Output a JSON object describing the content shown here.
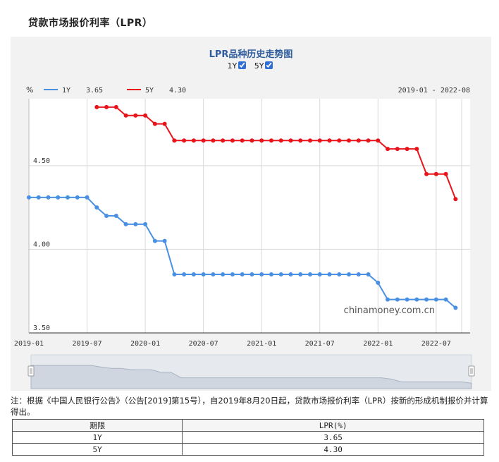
{
  "page_title": "贷款市场报价利率（LPR）",
  "toggles": [
    {
      "label": "1Y",
      "checked": true
    },
    {
      "label": "5Y",
      "checked": true
    }
  ],
  "legend": [
    {
      "name": "1Y",
      "value": "3.65",
      "color": "#4a90e2"
    },
    {
      "name": "5Y",
      "value": "4.30",
      "color": "#e8141b"
    }
  ],
  "unit": "%",
  "date_range": "2019-01 - 2022-08",
  "watermark": "chinamoney.com.cn",
  "chart_data": {
    "type": "line",
    "title": "LPR品种历史走势图",
    "ylim": [
      3.5,
      4.9
    ],
    "yticks": [
      "3.50",
      "4.00",
      "4.50"
    ],
    "xtick_labels": [
      "2019-01",
      "2019-07",
      "2020-01",
      "2020-07",
      "2021-01",
      "2021-07",
      "2022-01",
      "2022-07"
    ],
    "x_start": "2019-01",
    "series": [
      {
        "name": "1Y",
        "color": "#4a90e2",
        "values": [
          4.31,
          4.31,
          4.31,
          4.31,
          4.31,
          4.31,
          4.31,
          4.25,
          4.2,
          4.2,
          4.15,
          4.15,
          4.15,
          4.05,
          4.05,
          3.85,
          3.85,
          3.85,
          3.85,
          3.85,
          3.85,
          3.85,
          3.85,
          3.85,
          3.85,
          3.85,
          3.85,
          3.85,
          3.85,
          3.85,
          3.85,
          3.85,
          3.85,
          3.85,
          3.85,
          3.85,
          3.8,
          3.7,
          3.7,
          3.7,
          3.7,
          3.7,
          3.7,
          3.7,
          3.65
        ]
      },
      {
        "name": "5Y",
        "color": "#e8141b",
        "values": [
          null,
          null,
          null,
          null,
          null,
          null,
          null,
          4.85,
          4.85,
          4.85,
          4.8,
          4.8,
          4.8,
          4.75,
          4.75,
          4.65,
          4.65,
          4.65,
          4.65,
          4.65,
          4.65,
          4.65,
          4.65,
          4.65,
          4.65,
          4.65,
          4.65,
          4.65,
          4.65,
          4.65,
          4.65,
          4.65,
          4.65,
          4.65,
          4.65,
          4.65,
          4.65,
          4.6,
          4.6,
          4.6,
          4.6,
          4.45,
          4.45,
          4.45,
          4.3
        ]
      }
    ]
  },
  "footnote": "注：根据《中国人民银行公告》（公告[2019]第15号），自2019年8月20日起，贷款市场报价利率（LPR）按新的形成机制报价并计算得出。",
  "table": {
    "headers": [
      "期限",
      "LPR(%)"
    ],
    "rows": [
      [
        "1Y",
        "3.65"
      ],
      [
        "5Y",
        "4.30"
      ]
    ]
  }
}
